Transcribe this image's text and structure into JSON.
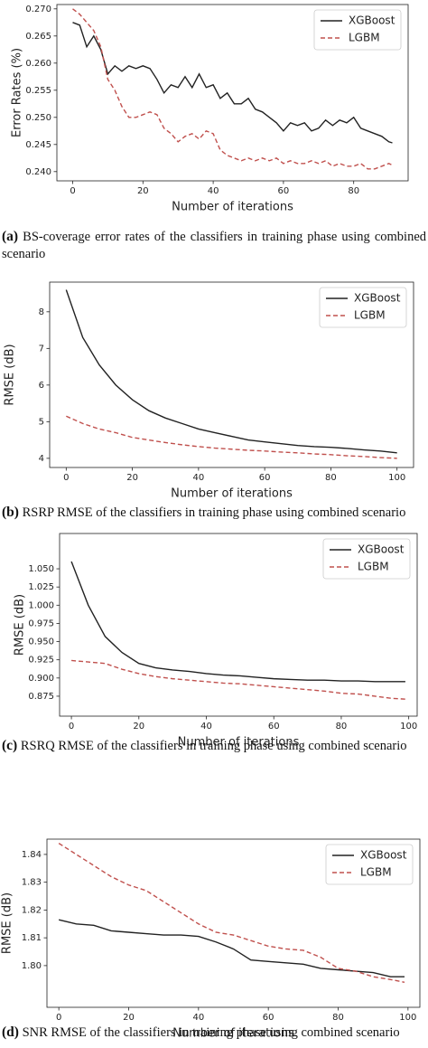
{
  "chart_data": [
    {
      "type": "line",
      "ylabel": "Error Rates (%)",
      "xlabel": "Number of iterations",
      "caption_label": "(a)",
      "caption": "BS-coverage error rates of the classifiers in training phase using combined scenario",
      "legend": "upper right",
      "x": [
        0,
        2,
        4,
        6,
        8,
        10,
        12,
        14,
        16,
        18,
        20,
        22,
        24,
        26,
        28,
        30,
        32,
        34,
        36,
        38,
        40,
        42,
        44,
        46,
        48,
        50,
        52,
        54,
        56,
        58,
        60,
        62,
        64,
        66,
        68,
        70,
        72,
        74,
        76,
        78,
        80,
        82,
        84,
        86,
        88,
        90,
        91
      ],
      "series": [
        {
          "name": "XGBoost",
          "color": "#222222",
          "linestyle": "solid",
          "values": [
            0.2675,
            0.267,
            0.263,
            0.265,
            0.2625,
            0.258,
            0.2595,
            0.2585,
            0.2595,
            0.259,
            0.2595,
            0.259,
            0.257,
            0.2545,
            0.256,
            0.2555,
            0.2575,
            0.2555,
            0.258,
            0.2555,
            0.256,
            0.2535,
            0.2545,
            0.2525,
            0.2525,
            0.2535,
            0.2515,
            0.251,
            0.25,
            0.249,
            0.2475,
            0.249,
            0.2485,
            0.249,
            0.2475,
            0.248,
            0.2495,
            0.2485,
            0.2495,
            0.249,
            0.25,
            0.248,
            0.2475,
            0.247,
            0.2465,
            0.2455,
            0.2453
          ]
        },
        {
          "name": "LGBM",
          "color": "#c0504d",
          "linestyle": "dashed",
          "values": [
            0.27,
            0.269,
            0.2675,
            0.266,
            0.263,
            0.257,
            0.255,
            0.252,
            0.25,
            0.25,
            0.2505,
            0.251,
            0.2505,
            0.248,
            0.247,
            0.2455,
            0.2465,
            0.247,
            0.246,
            0.2475,
            0.247,
            0.244,
            0.243,
            0.2425,
            0.242,
            0.2425,
            0.242,
            0.2425,
            0.242,
            0.2425,
            0.2415,
            0.242,
            0.2415,
            0.2415,
            0.242,
            0.2415,
            0.242,
            0.241,
            0.2415,
            0.241,
            0.241,
            0.2415,
            0.2405,
            0.2405,
            0.241,
            0.2415,
            0.2412
          ]
        }
      ],
      "xlim": [
        -4.5,
        95.5
      ],
      "xticks": [
        0,
        20,
        40,
        60,
        80
      ],
      "ylim": [
        0.2383,
        0.2708
      ],
      "yticks": [
        {
          "value": 0.24,
          "label": "0.240"
        },
        {
          "value": 0.245,
          "label": "0.245"
        },
        {
          "value": 0.25,
          "label": "0.250"
        },
        {
          "value": 0.255,
          "label": "0.255"
        },
        {
          "value": 0.26,
          "label": "0.260"
        },
        {
          "value": 0.265,
          "label": "0.265"
        },
        {
          "value": 0.27,
          "label": "0.270"
        }
      ]
    },
    {
      "type": "line",
      "ylabel": "RMSE (dB)",
      "xlabel": "Number of iterations",
      "caption_label": "(b)",
      "caption": "RSRP RMSE of the classifiers in training phase using combined scenario",
      "legend": "upper right",
      "x": [
        0,
        5,
        10,
        15,
        20,
        25,
        30,
        35,
        40,
        45,
        50,
        55,
        60,
        65,
        70,
        75,
        80,
        85,
        90,
        95,
        100
      ],
      "series": [
        {
          "name": "XGBoost",
          "color": "#222222",
          "linestyle": "solid",
          "values": [
            8.6,
            7.3,
            6.55,
            6.0,
            5.6,
            5.3,
            5.1,
            4.95,
            4.8,
            4.7,
            4.6,
            4.5,
            4.45,
            4.4,
            4.35,
            4.32,
            4.3,
            4.27,
            4.23,
            4.2,
            4.15
          ]
        },
        {
          "name": "LGBM",
          "color": "#c0504d",
          "linestyle": "dashed",
          "values": [
            5.15,
            4.95,
            4.8,
            4.7,
            4.57,
            4.5,
            4.43,
            4.37,
            4.32,
            4.28,
            4.25,
            4.22,
            4.2,
            4.17,
            4.15,
            4.12,
            4.1,
            4.07,
            4.05,
            4.02,
            4.0
          ]
        }
      ],
      "xlim": [
        -5,
        105
      ],
      "xticks": [
        0,
        20,
        40,
        60,
        80,
        100
      ],
      "ylim": [
        3.75,
        8.81
      ],
      "yticks": [
        4,
        5,
        6,
        7,
        8
      ]
    },
    {
      "type": "line",
      "ylabel": "RMSE (dB)",
      "xlabel": "Number of iterations",
      "caption_label": "(c)",
      "caption": "RSRQ RMSE of the classifiers in training phase using combined scenario",
      "legend": "upper right",
      "x": [
        0,
        5,
        10,
        15,
        20,
        25,
        30,
        35,
        40,
        45,
        50,
        55,
        60,
        65,
        70,
        75,
        80,
        85,
        90,
        95,
        99
      ],
      "series": [
        {
          "name": "XGBoost",
          "color": "#222222",
          "linestyle": "solid",
          "values": [
            1.06,
            1.0,
            0.957,
            0.935,
            0.92,
            0.914,
            0.911,
            0.909,
            0.906,
            0.904,
            0.903,
            0.901,
            0.899,
            0.898,
            0.897,
            0.897,
            0.896,
            0.896,
            0.895,
            0.895,
            0.895
          ]
        },
        {
          "name": "LGBM",
          "color": "#c0504d",
          "linestyle": "dashed",
          "values": [
            0.924,
            0.922,
            0.92,
            0.912,
            0.906,
            0.902,
            0.899,
            0.897,
            0.895,
            0.893,
            0.892,
            0.89,
            0.888,
            0.886,
            0.884,
            0.882,
            0.879,
            0.878,
            0.875,
            0.872,
            0.871
          ]
        }
      ],
      "xlim": [
        -3.5,
        102.5
      ],
      "xticks": [
        0,
        20,
        40,
        60,
        80,
        100
      ],
      "ylim": [
        0.8476,
        1.0985
      ],
      "yticks": [
        {
          "value": 0.875,
          "label": "0.875"
        },
        {
          "value": 0.9,
          "label": "0.900"
        },
        {
          "value": 0.925,
          "label": "0.925"
        },
        {
          "value": 0.95,
          "label": "0.950"
        },
        {
          "value": 0.975,
          "label": "0.975"
        },
        {
          "value": 1.0,
          "label": "1.000"
        },
        {
          "value": 1.025,
          "label": "1.025"
        },
        {
          "value": 1.05,
          "label": "1.050"
        }
      ]
    },
    {
      "type": "line",
      "ylabel": "RMSE (dB)",
      "xlabel": "Number of iterations",
      "caption_label": "(d)",
      "caption": "SNR RMSE of the classifiers in training phase using combined scenario",
      "legend": "upper right",
      "x": [
        0,
        5,
        10,
        15,
        20,
        25,
        30,
        35,
        40,
        45,
        50,
        55,
        60,
        65,
        70,
        75,
        80,
        85,
        90,
        95,
        99
      ],
      "series": [
        {
          "name": "XGBoost",
          "color": "#222222",
          "linestyle": "solid",
          "values": [
            1.8165,
            1.815,
            1.8145,
            1.8125,
            1.812,
            1.8115,
            1.811,
            1.811,
            1.8105,
            1.8085,
            1.806,
            1.802,
            1.8015,
            1.801,
            1.8005,
            1.799,
            1.7985,
            1.798,
            1.7975,
            1.796,
            1.796
          ]
        },
        {
          "name": "LGBM",
          "color": "#c0504d",
          "linestyle": "dashed",
          "values": [
            1.844,
            1.84,
            1.836,
            1.832,
            1.829,
            1.827,
            1.823,
            1.819,
            1.815,
            1.812,
            1.811,
            1.809,
            1.807,
            1.806,
            1.8055,
            1.803,
            1.799,
            1.798,
            1.796,
            1.795,
            1.794
          ]
        }
      ],
      "xlim": [
        -3.4,
        103.4
      ],
      "xticks": [
        0,
        20,
        40,
        60,
        80,
        100
      ],
      "ylim": [
        1.785,
        1.8455
      ],
      "yticks": [
        {
          "value": 1.8,
          "label": "1.80"
        },
        {
          "value": 1.81,
          "label": "1.81"
        },
        {
          "value": 1.82,
          "label": "1.82"
        },
        {
          "value": 1.83,
          "label": "1.83"
        },
        {
          "value": 1.84,
          "label": "1.84"
        }
      ]
    }
  ]
}
